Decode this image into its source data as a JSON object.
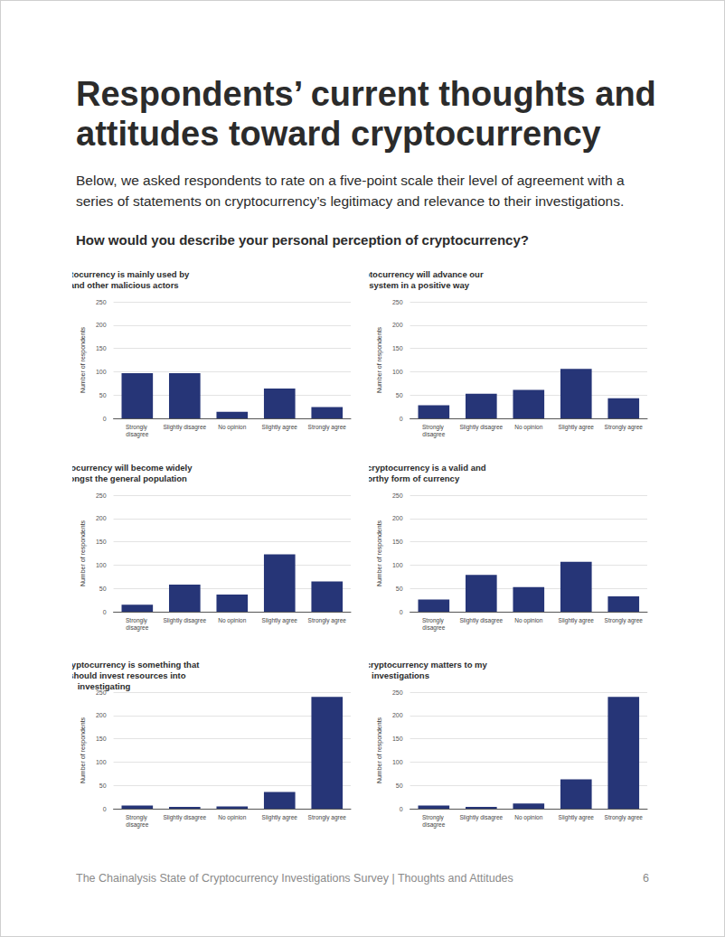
{
  "header": {
    "title": "Respondents’ current thoughts and attitudes toward cryptocurrency",
    "intro": "Below, we asked respondents to rate on a five-point scale their level of agreement with a series of statements on cryptocurrency’s legitimacy and relevance to their investigations.",
    "question": "How would you describe your personal perception of cryptocurrency?"
  },
  "chart_data": [
    {
      "type": "bar",
      "title": "I believe cryptocurrency is mainly used by criminals and other malicious actors",
      "y_label": "Number of respondents",
      "categories": [
        "Strongly disagree",
        "Slightly disagree",
        "No opinion",
        "Slightly agree",
        "Strongly agree"
      ],
      "values": [
        97,
        97,
        14,
        64,
        24
      ],
      "color": "#263577",
      "ylim": [
        0,
        250
      ],
      "yticks": [
        0,
        50,
        100,
        150,
        200,
        250
      ],
      "grid": true
    },
    {
      "type": "bar",
      "title": "I believe cryptocurrency will advance our financial system in a positive way",
      "y_label": "Number of respondents",
      "categories": [
        "Strongly disagree",
        "Slightly disagree",
        "No opinion",
        "Slightly agree",
        "Strongly agree"
      ],
      "values": [
        28,
        53,
        61,
        106,
        43
      ],
      "color": "#263577",
      "ylim": [
        0,
        250
      ],
      "yticks": [
        0,
        50,
        100,
        150,
        200,
        250
      ],
      "grid": true
    },
    {
      "type": "bar",
      "title": "I believe cryptocurrency will become widely adopted amongst the general population",
      "y_label": "Number of respondents",
      "categories": [
        "Strongly disagree",
        "Slightly disagree",
        "No opinion",
        "Slightly agree",
        "Strongly agree"
      ],
      "values": [
        15,
        58,
        37,
        123,
        65
      ],
      "color": "#263577",
      "ylim": [
        0,
        250
      ],
      "yticks": [
        0,
        50,
        100,
        150,
        200,
        250
      ],
      "grid": true
    },
    {
      "type": "bar",
      "title": "I believe that cryptocurrency is a valid and trustworthy form of currency",
      "y_label": "Number of respondents",
      "categories": [
        "Strongly disagree",
        "Slightly disagree",
        "No opinion",
        "Slightly agree",
        "Strongly agree"
      ],
      "values": [
        26,
        79,
        53,
        107,
        33
      ],
      "color": "#263577",
      "ylim": [
        0,
        250
      ],
      "yticks": [
        0,
        50,
        100,
        150,
        200,
        250
      ],
      "grid": true
    },
    {
      "type": "bar",
      "title": "I believe that cryptocurrency is something that my agency should invest resources into investigating",
      "y_label": "Number of respondents",
      "categories": [
        "Strongly disagree",
        "Slightly disagree",
        "No opinion",
        "Slightly agree",
        "Strongly agree"
      ],
      "values": [
        7,
        4,
        5,
        36,
        240
      ],
      "color": "#263577",
      "ylim": [
        0,
        250
      ],
      "yticks": [
        0,
        50,
        100,
        150,
        200,
        250
      ],
      "grid": true
    },
    {
      "type": "bar",
      "title": "I believe that cryptocurrency matters to my investigations",
      "y_label": "Number of respondents",
      "categories": [
        "Strongly disagree",
        "Slightly disagree",
        "No opinion",
        "Slightly agree",
        "Strongly agree"
      ],
      "values": [
        7,
        4,
        11,
        63,
        240
      ],
      "color": "#263577",
      "ylim": [
        0,
        250
      ],
      "yticks": [
        0,
        50,
        100,
        150,
        200,
        250
      ],
      "grid": true
    }
  ],
  "footer": {
    "text": "The Chainalysis State of Cryptocurrency Investigations Survey | Thoughts and Attitudes",
    "page": 6
  }
}
